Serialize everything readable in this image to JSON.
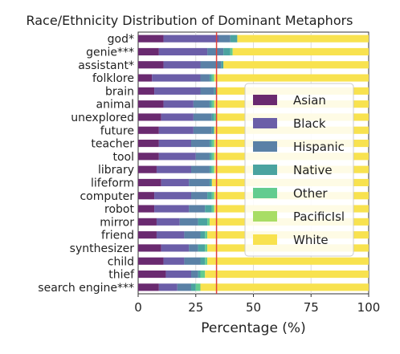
{
  "chart_data": {
    "type": "bar",
    "orientation": "horizontal",
    "stacked": true,
    "title": "Race/Ethnicity Distribution of Dominant Metaphors",
    "xlabel": "Percentage (%)",
    "ylabel": "",
    "xlim": [
      0,
      100
    ],
    "x_ticks": [
      0,
      25,
      50,
      75,
      100
    ],
    "grid": true,
    "legend_position": "center-right",
    "reference_line": {
      "x": 34,
      "color": "#e0403a"
    },
    "categories": [
      "god*",
      "genie***",
      "assistant*",
      "folklore",
      "brain",
      "animal",
      "unexplored",
      "future",
      "teacher",
      "tool",
      "library",
      "lifeform",
      "computer",
      "robot",
      "mirror",
      "friend",
      "synthesizer",
      "child",
      "thief",
      "search engine***"
    ],
    "series": [
      {
        "name": "Asian",
        "color": "#6a2a70",
        "values": [
          11,
          9,
          11,
          6,
          7,
          11,
          10,
          9,
          9,
          9,
          8,
          10,
          7,
          7,
          8,
          8,
          10,
          11,
          12,
          9
        ]
      },
      {
        "name": "Black",
        "color": "#6b5ea8",
        "values": [
          24,
          21,
          16,
          21,
          20,
          13,
          14,
          15,
          14,
          16,
          15,
          12,
          16,
          15,
          10,
          12,
          12,
          9,
          11,
          8
        ]
      },
      {
        "name": "Hispanic",
        "color": "#5a81a6",
        "values": [
          5,
          7,
          9,
          4,
          6,
          7,
          8,
          8,
          8,
          6,
          8,
          9,
          7,
          7,
          8,
          7,
          4,
          7,
          3,
          6
        ]
      },
      {
        "name": "Native",
        "color": "#4aa3a0",
        "values": [
          3,
          3,
          1,
          1,
          1,
          1,
          1,
          1,
          1,
          1,
          1,
          1,
          2,
          3,
          4,
          2,
          3,
          2,
          1,
          2
        ]
      },
      {
        "name": "Other",
        "color": "#63cc8f",
        "values": [
          0,
          1,
          0,
          1,
          0,
          1,
          1,
          0,
          1,
          1,
          1,
          0,
          1,
          1,
          1,
          1,
          1,
          1,
          2,
          2
        ]
      },
      {
        "name": "PacificIsl",
        "color": "#a8dd65",
        "values": [
          0,
          0,
          0,
          0,
          0,
          0,
          0,
          0,
          0,
          0,
          0,
          0,
          0,
          0,
          0,
          0,
          0,
          0,
          0,
          0
        ]
      },
      {
        "name": "White",
        "color": "#f8e24f",
        "values": [
          57,
          59,
          63,
          67,
          66,
          67,
          66,
          67,
          67,
          67,
          67,
          68,
          67,
          67,
          69,
          70,
          70,
          70,
          71,
          73
        ]
      }
    ]
  }
}
